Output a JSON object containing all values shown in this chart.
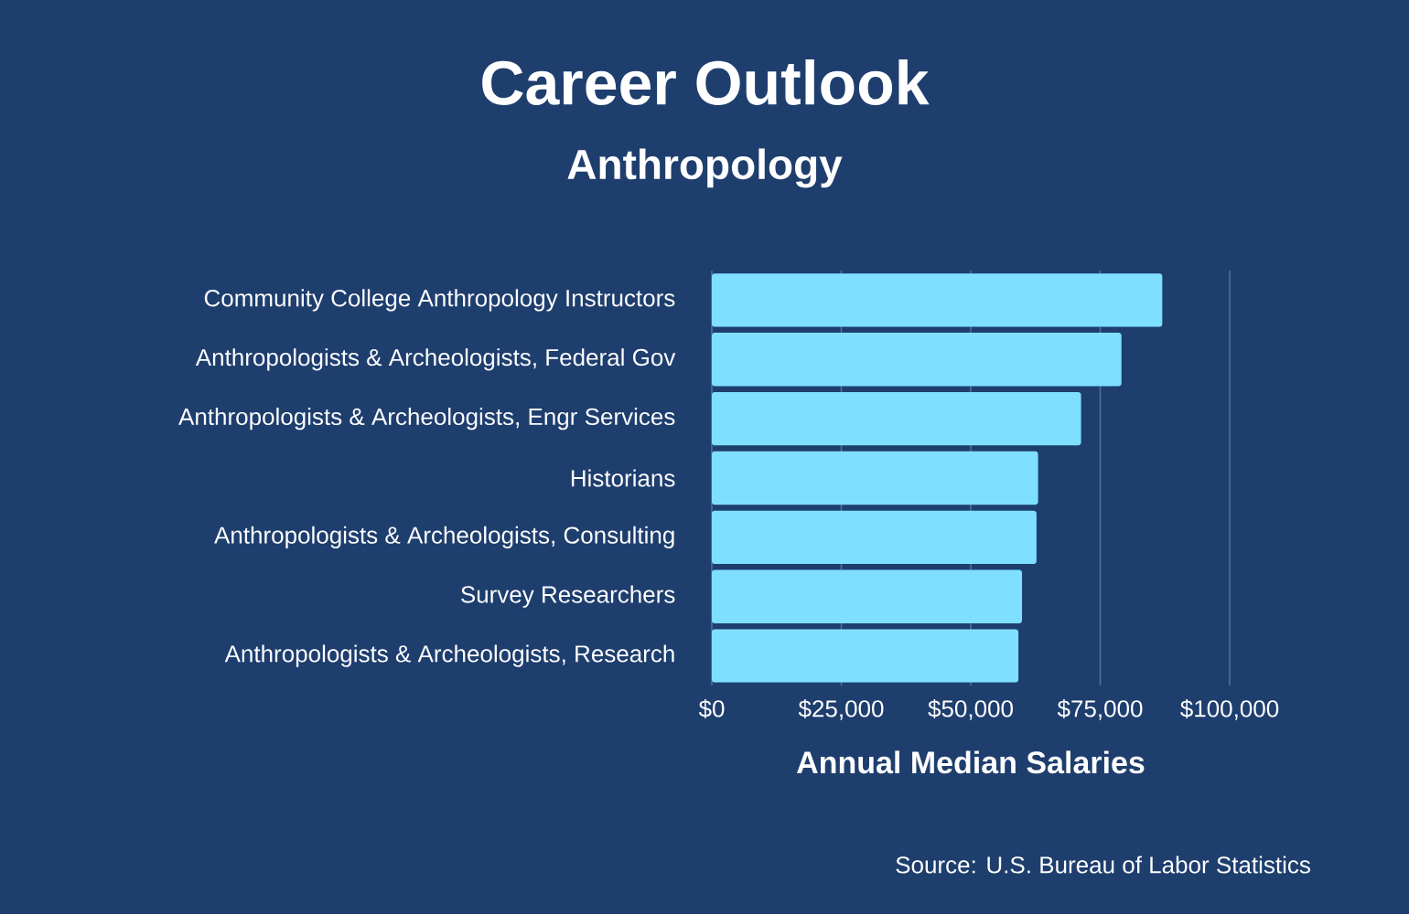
{
  "chart_data": {
    "type": "bar",
    "orientation": "horizontal",
    "title": "Career Outlook",
    "subtitle": "Anthropology",
    "xlabel": "Annual Median Salaries",
    "categories": [
      "Community College Anthropology Instructors",
      "Anthropologists & Archeologists, Federal Gov",
      "Anthropologists & Archeologists, Engr Services",
      "Historians",
      "Anthropologists & Archeologists, Consulting",
      "Survey Researchers",
      "Anthropologists & Archeologists, Research"
    ],
    "values": [
      87000,
      79100,
      71300,
      63000,
      62700,
      59900,
      59200
    ],
    "color": "#7fdfff",
    "xlim": [
      0,
      100000
    ],
    "xticks": [
      {
        "value": 0,
        "label": "$0"
      },
      {
        "value": 25000,
        "label": "$25,000"
      },
      {
        "value": 50000,
        "label": "$50,000"
      },
      {
        "value": 75000,
        "label": "$75,000"
      },
      {
        "value": 100000,
        "label": "$100,000"
      }
    ],
    "grid": "x",
    "annotations": [
      "Source: U.S. Bureau of Labor Statistics"
    ]
  }
}
